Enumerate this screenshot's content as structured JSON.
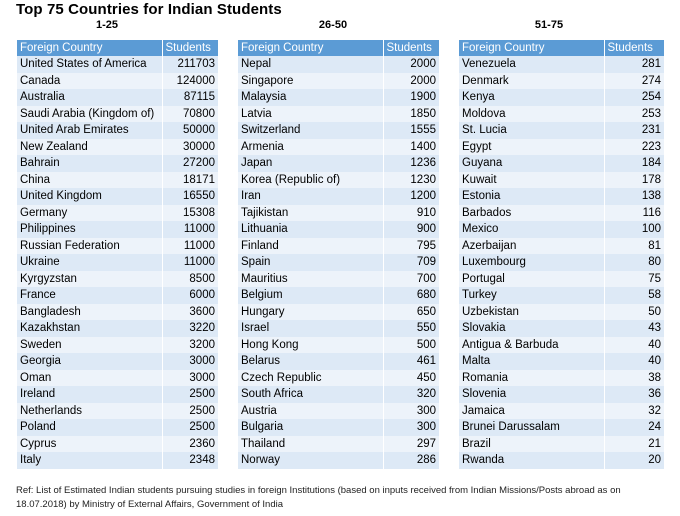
{
  "title": "Top 75 Countries for Indian Students",
  "tables": [
    {
      "range": "1-25",
      "headers": [
        "Foreign Country",
        "Students"
      ],
      "rows": [
        [
          "United States of America",
          "211703"
        ],
        [
          "Canada",
          "124000"
        ],
        [
          "Australia",
          "87115"
        ],
        [
          "Saudi Arabia (Kingdom of)",
          "70800"
        ],
        [
          "United Arab Emirates",
          "50000"
        ],
        [
          "New Zealand",
          "30000"
        ],
        [
          "Bahrain",
          "27200"
        ],
        [
          "China",
          "18171"
        ],
        [
          "United Kingdom",
          "16550"
        ],
        [
          "Germany",
          "15308"
        ],
        [
          "Philippines",
          "11000"
        ],
        [
          "Russian Federation",
          "11000"
        ],
        [
          "Ukraine",
          "11000"
        ],
        [
          "Kyrgyzstan",
          "8500"
        ],
        [
          "France",
          "6000"
        ],
        [
          "Bangladesh",
          "3600"
        ],
        [
          "Kazakhstan",
          "3220"
        ],
        [
          "Sweden",
          "3200"
        ],
        [
          "Georgia",
          "3000"
        ],
        [
          "Oman",
          "3000"
        ],
        [
          "Ireland",
          "2500"
        ],
        [
          "Netherlands",
          "2500"
        ],
        [
          "Poland",
          "2500"
        ],
        [
          "Cyprus",
          "2360"
        ],
        [
          "Italy",
          "2348"
        ]
      ]
    },
    {
      "range": "26-50",
      "headers": [
        "Foreign Country",
        "Students"
      ],
      "rows": [
        [
          "Nepal",
          "2000"
        ],
        [
          "Singapore",
          "2000"
        ],
        [
          "Malaysia",
          "1900"
        ],
        [
          "Latvia",
          "1850"
        ],
        [
          "Switzerland",
          "1555"
        ],
        [
          "Armenia",
          "1400"
        ],
        [
          "Japan",
          "1236"
        ],
        [
          "Korea (Republic of)",
          "1230"
        ],
        [
          "Iran",
          "1200"
        ],
        [
          "Tajikistan",
          "910"
        ],
        [
          "Lithuania",
          "900"
        ],
        [
          "Finland",
          "795"
        ],
        [
          "Spain",
          "709"
        ],
        [
          "Mauritius",
          "700"
        ],
        [
          "Belgium",
          "680"
        ],
        [
          "Hungary",
          "650"
        ],
        [
          "Israel",
          "550"
        ],
        [
          "Hong Kong",
          "500"
        ],
        [
          "Belarus",
          "461"
        ],
        [
          "Czech Republic",
          "450"
        ],
        [
          "South Africa",
          "320"
        ],
        [
          "Austria",
          "300"
        ],
        [
          "Bulgaria",
          "300"
        ],
        [
          "Thailand",
          "297"
        ],
        [
          "Norway",
          "286"
        ]
      ]
    },
    {
      "range": "51-75",
      "headers": [
        "Foreign Country",
        "Students"
      ],
      "rows": [
        [
          "Venezuela",
          "281"
        ],
        [
          "Denmark",
          "274"
        ],
        [
          "Kenya",
          "254"
        ],
        [
          "Moldova",
          "253"
        ],
        [
          "St. Lucia",
          "231"
        ],
        [
          "Egypt",
          "223"
        ],
        [
          "Guyana",
          "184"
        ],
        [
          "Kuwait",
          "178"
        ],
        [
          "Estonia",
          "138"
        ],
        [
          "Barbados",
          "116"
        ],
        [
          "Mexico",
          "100"
        ],
        [
          "Azerbaijan",
          "81"
        ],
        [
          "Luxembourg",
          "80"
        ],
        [
          "Portugal",
          "75"
        ],
        [
          "Turkey",
          "58"
        ],
        [
          "Uzbekistan",
          "50"
        ],
        [
          "Slovakia",
          "43"
        ],
        [
          "Antigua & Barbuda",
          "40"
        ],
        [
          "Malta",
          "40"
        ],
        [
          "Romania",
          "38"
        ],
        [
          "Slovenia",
          "36"
        ],
        [
          "Jamaica",
          "32"
        ],
        [
          "Brunei Darussalam",
          "24"
        ],
        [
          "Brazil",
          "21"
        ],
        [
          "Rwanda",
          "20"
        ]
      ]
    }
  ],
  "footer": "Ref: List of Estimated Indian students pursuing studies in foreign Institutions (based on inputs received from Indian Missions/Posts abroad as on 18.07.2018) by Ministry of External Affairs, Government of India"
}
